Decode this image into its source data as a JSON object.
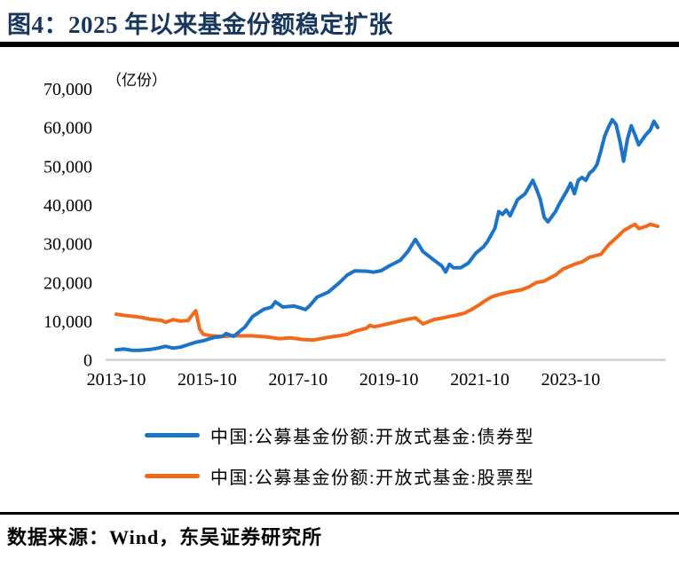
{
  "figure": {
    "title": "图4：2025 年以来基金份额稳定扩张",
    "source": "数据来源：Wind，东吴证券研究所"
  },
  "colors": {
    "title": "#17375E",
    "rule": "#000000",
    "axis_line": "#CFCFCF",
    "tick_text": "#000000",
    "background": "#FFFFFF",
    "bond_series": "#1B74C8",
    "equity_series": "#F2691A"
  },
  "chart_data": {
    "type": "line",
    "title": "图4：2025 年以来基金份额稳定扩张",
    "unit_label": "（亿份）",
    "grid": false,
    "legend_position": "bottom",
    "x_axis": {
      "start": "2013-10",
      "end": "2025-09",
      "range_months": [
        0,
        143
      ],
      "tick_months": [
        0,
        24,
        48,
        72,
        96,
        120
      ],
      "tick_labels": [
        "2013-10",
        "2015-10",
        "2017-10",
        "2019-10",
        "2021-10",
        "2023-10"
      ]
    },
    "y_axis": {
      "lim": [
        0,
        70000
      ],
      "ticks": [
        70000,
        60000,
        50000,
        40000,
        30000,
        20000,
        10000,
        0
      ],
      "tick_labels": [
        "70,000",
        "60,000",
        "50,000",
        "40,000",
        "30,000",
        "20,000",
        "10,000",
        "0"
      ]
    },
    "series": [
      {
        "name": "中国:公募基金份额:开放式基金:债券型",
        "color": "#1B74C8",
        "points": [
          [
            0,
            2600
          ],
          [
            2,
            2800
          ],
          [
            4,
            2500
          ],
          [
            6,
            2450
          ],
          [
            9,
            2700
          ],
          [
            11,
            3050
          ],
          [
            13,
            3500
          ],
          [
            15,
            3050
          ],
          [
            17,
            3300
          ],
          [
            19,
            3950
          ],
          [
            21,
            4550
          ],
          [
            23,
            4950
          ],
          [
            26,
            5850
          ],
          [
            28,
            6050
          ],
          [
            29,
            6800
          ],
          [
            31,
            6100
          ],
          [
            34,
            8500
          ],
          [
            36,
            11200
          ],
          [
            39,
            13100
          ],
          [
            41,
            13600
          ],
          [
            42,
            15000
          ],
          [
            44,
            13650
          ],
          [
            47,
            13900
          ],
          [
            50,
            13000
          ],
          [
            51,
            13900
          ],
          [
            53,
            16200
          ],
          [
            56,
            17500
          ],
          [
            59,
            20000
          ],
          [
            61,
            21900
          ],
          [
            63,
            23000
          ],
          [
            66,
            22900
          ],
          [
            68,
            22650
          ],
          [
            70,
            23050
          ],
          [
            72,
            24200
          ],
          [
            75,
            25700
          ],
          [
            77,
            28000
          ],
          [
            79,
            31100
          ],
          [
            81,
            28000
          ],
          [
            84,
            25700
          ],
          [
            86,
            24200
          ],
          [
            87,
            22700
          ],
          [
            88,
            24700
          ],
          [
            89,
            23800
          ],
          [
            91,
            23800
          ],
          [
            93,
            25000
          ],
          [
            95,
            27600
          ],
          [
            97,
            29200
          ],
          [
            98,
            30500
          ],
          [
            100,
            34000
          ],
          [
            101,
            38300
          ],
          [
            102,
            37550
          ],
          [
            103,
            38700
          ],
          [
            104,
            37200
          ],
          [
            106,
            41400
          ],
          [
            108,
            42900
          ],
          [
            110,
            46350
          ],
          [
            111,
            44050
          ],
          [
            112,
            41400
          ],
          [
            113,
            36800
          ],
          [
            114,
            35650
          ],
          [
            116,
            38300
          ],
          [
            117,
            40250
          ],
          [
            119,
            43650
          ],
          [
            120,
            45600
          ],
          [
            121,
            42900
          ],
          [
            122,
            46350
          ],
          [
            123,
            47100
          ],
          [
            124,
            46350
          ],
          [
            125,
            48250
          ],
          [
            126,
            49000
          ],
          [
            127,
            50550
          ],
          [
            128,
            54000
          ],
          [
            129,
            57800
          ],
          [
            130,
            60100
          ],
          [
            131,
            62000
          ],
          [
            132,
            60800
          ],
          [
            133,
            56500
          ],
          [
            134,
            51300
          ],
          [
            135,
            57000
          ],
          [
            136,
            60450
          ],
          [
            137,
            58100
          ],
          [
            138,
            55500
          ],
          [
            139,
            57000
          ],
          [
            140,
            58300
          ],
          [
            141,
            59300
          ],
          [
            142,
            61600
          ],
          [
            143,
            60000
          ]
        ]
      },
      {
        "name": "中国:公募基金份额:开放式基金:股票型",
        "color": "#F2691A",
        "points": [
          [
            0,
            11800
          ],
          [
            2,
            11500
          ],
          [
            5,
            11200
          ],
          [
            7,
            10900
          ],
          [
            9,
            10500
          ],
          [
            12,
            10200
          ],
          [
            13,
            9700
          ],
          [
            15,
            10400
          ],
          [
            17,
            10000
          ],
          [
            19,
            10200
          ],
          [
            20,
            11500
          ],
          [
            21,
            12700
          ],
          [
            22,
            8000
          ],
          [
            23,
            6600
          ],
          [
            25,
            6250
          ],
          [
            27,
            6100
          ],
          [
            29,
            6100
          ],
          [
            31,
            6250
          ],
          [
            33,
            6200
          ],
          [
            36,
            6200
          ],
          [
            40,
            5900
          ],
          [
            43,
            5500
          ],
          [
            46,
            5700
          ],
          [
            49,
            5300
          ],
          [
            52,
            5100
          ],
          [
            54,
            5475
          ],
          [
            56,
            5850
          ],
          [
            59,
            6250
          ],
          [
            61,
            6600
          ],
          [
            63,
            7400
          ],
          [
            66,
            8150
          ],
          [
            67,
            8900
          ],
          [
            68,
            8550
          ],
          [
            70,
            8900
          ],
          [
            73,
            9600
          ],
          [
            75,
            10050
          ],
          [
            77,
            10500
          ],
          [
            79,
            10850
          ],
          [
            81,
            9300
          ],
          [
            84,
            10450
          ],
          [
            86,
            10800
          ],
          [
            88,
            11200
          ],
          [
            90,
            11600
          ],
          [
            92,
            12100
          ],
          [
            94,
            13100
          ],
          [
            96,
            14300
          ],
          [
            97,
            15000
          ],
          [
            99,
            16200
          ],
          [
            100,
            16550
          ],
          [
            102,
            17100
          ],
          [
            104,
            17550
          ],
          [
            107,
            18100
          ],
          [
            109,
            18850
          ],
          [
            111,
            20000
          ],
          [
            113,
            20350
          ],
          [
            115,
            21400
          ],
          [
            116,
            21900
          ],
          [
            118,
            23450
          ],
          [
            121,
            24700
          ],
          [
            123,
            25300
          ],
          [
            125,
            26500
          ],
          [
            128,
            27250
          ],
          [
            130,
            29700
          ],
          [
            132,
            31450
          ],
          [
            134,
            33350
          ],
          [
            136,
            34500
          ],
          [
            137,
            35000
          ],
          [
            138,
            33900
          ],
          [
            140,
            34500
          ],
          [
            141,
            35000
          ],
          [
            143,
            34500
          ]
        ]
      }
    ]
  }
}
